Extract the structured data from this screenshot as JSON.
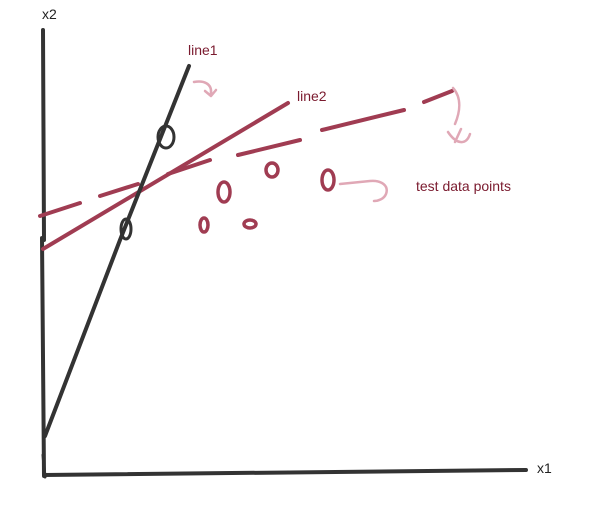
{
  "colors": {
    "background": "#ffffff",
    "axes": "#333333",
    "line1": "#333333",
    "line2": "#a03c52",
    "dashed_line": "#a03c52",
    "points": "#a03c52",
    "arrows": "#e0a8b6",
    "text_dark": "#222222",
    "text_red": "#7a1a2e"
  },
  "labels": {
    "y_axis": "x2",
    "x_axis": "x1",
    "line1": "line1",
    "line2": "line2",
    "test_points": "test data points"
  },
  "icons": {
    "arrow_line1": "curved-arrow-icon",
    "arrow_dashed": "curved-arrow-down-icon",
    "arrow_points": "curved-arrow-right-icon"
  }
}
